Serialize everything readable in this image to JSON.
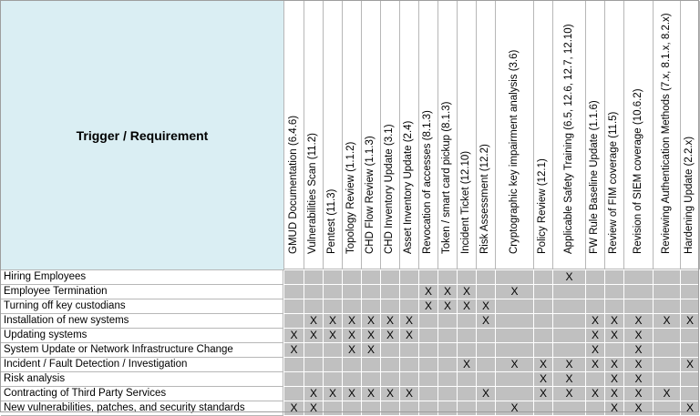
{
  "table": {
    "corner_label": "Trigger / Requirement",
    "mark": "X",
    "columns": [
      "GMUD Documentation (6.4.6)",
      "Vulnerabilities Scan (11.2)",
      "Pentest (11.3)",
      "Topology Review (1.1.2)",
      "CHD Flow Review (1.1.3)",
      "CHD Inventory Update (3.1)",
      "Asset Inventory Update (2.4)",
      "Revocation of accesses (8.1.3)",
      "Token / smart card pickup (8.1.3)",
      "Incident Ticket (12.10)",
      "Risk Assessment (12.2)",
      "Cryptographic key impairment analysis (3.6)",
      "Policy Review (12.1)",
      "Applicable Safety Training (6.5, 12.6, 12.7, 12.10)",
      "FW Rule Baseline Update (1.1.6)",
      "Review of FIM coverage (11.5)",
      "Revision of SIEM coverage (10.6.2)",
      "Reviewing Authentication Methods (7.x, 8.1.x, 8.2.x)",
      "Hardening Update (2.2.x)"
    ],
    "rows": [
      {
        "label": "Hiring Employees",
        "marks": [
          13
        ]
      },
      {
        "label": "Employee Termination",
        "marks": [
          7,
          8,
          9,
          11
        ]
      },
      {
        "label": "Turning off key custodians",
        "marks": [
          7,
          8,
          9,
          10
        ]
      },
      {
        "label": "Installation of new systems",
        "marks": [
          1,
          2,
          3,
          4,
          5,
          6,
          10,
          14,
          15,
          16,
          17,
          18
        ]
      },
      {
        "label": "Updating systems",
        "marks": [
          0,
          1,
          2,
          3,
          4,
          5,
          6,
          14,
          15,
          16
        ]
      },
      {
        "label": "System Update or Network Infrastructure Change",
        "marks": [
          0,
          3,
          4,
          14,
          16
        ]
      },
      {
        "label": "Incident / Fault Detection / Investigation",
        "marks": [
          9,
          11,
          12,
          13,
          14,
          15,
          16,
          18
        ]
      },
      {
        "label": "Risk analysis",
        "marks": [
          12,
          13,
          15,
          16
        ]
      },
      {
        "label": "Contracting of Third Party Services",
        "marks": [
          1,
          2,
          3,
          4,
          5,
          6,
          10,
          12,
          13,
          14,
          15,
          16,
          17
        ]
      },
      {
        "label": "New vulnerabilities, patches, and security standards",
        "marks": [
          0,
          1,
          11,
          15,
          16,
          18
        ]
      }
    ]
  }
}
